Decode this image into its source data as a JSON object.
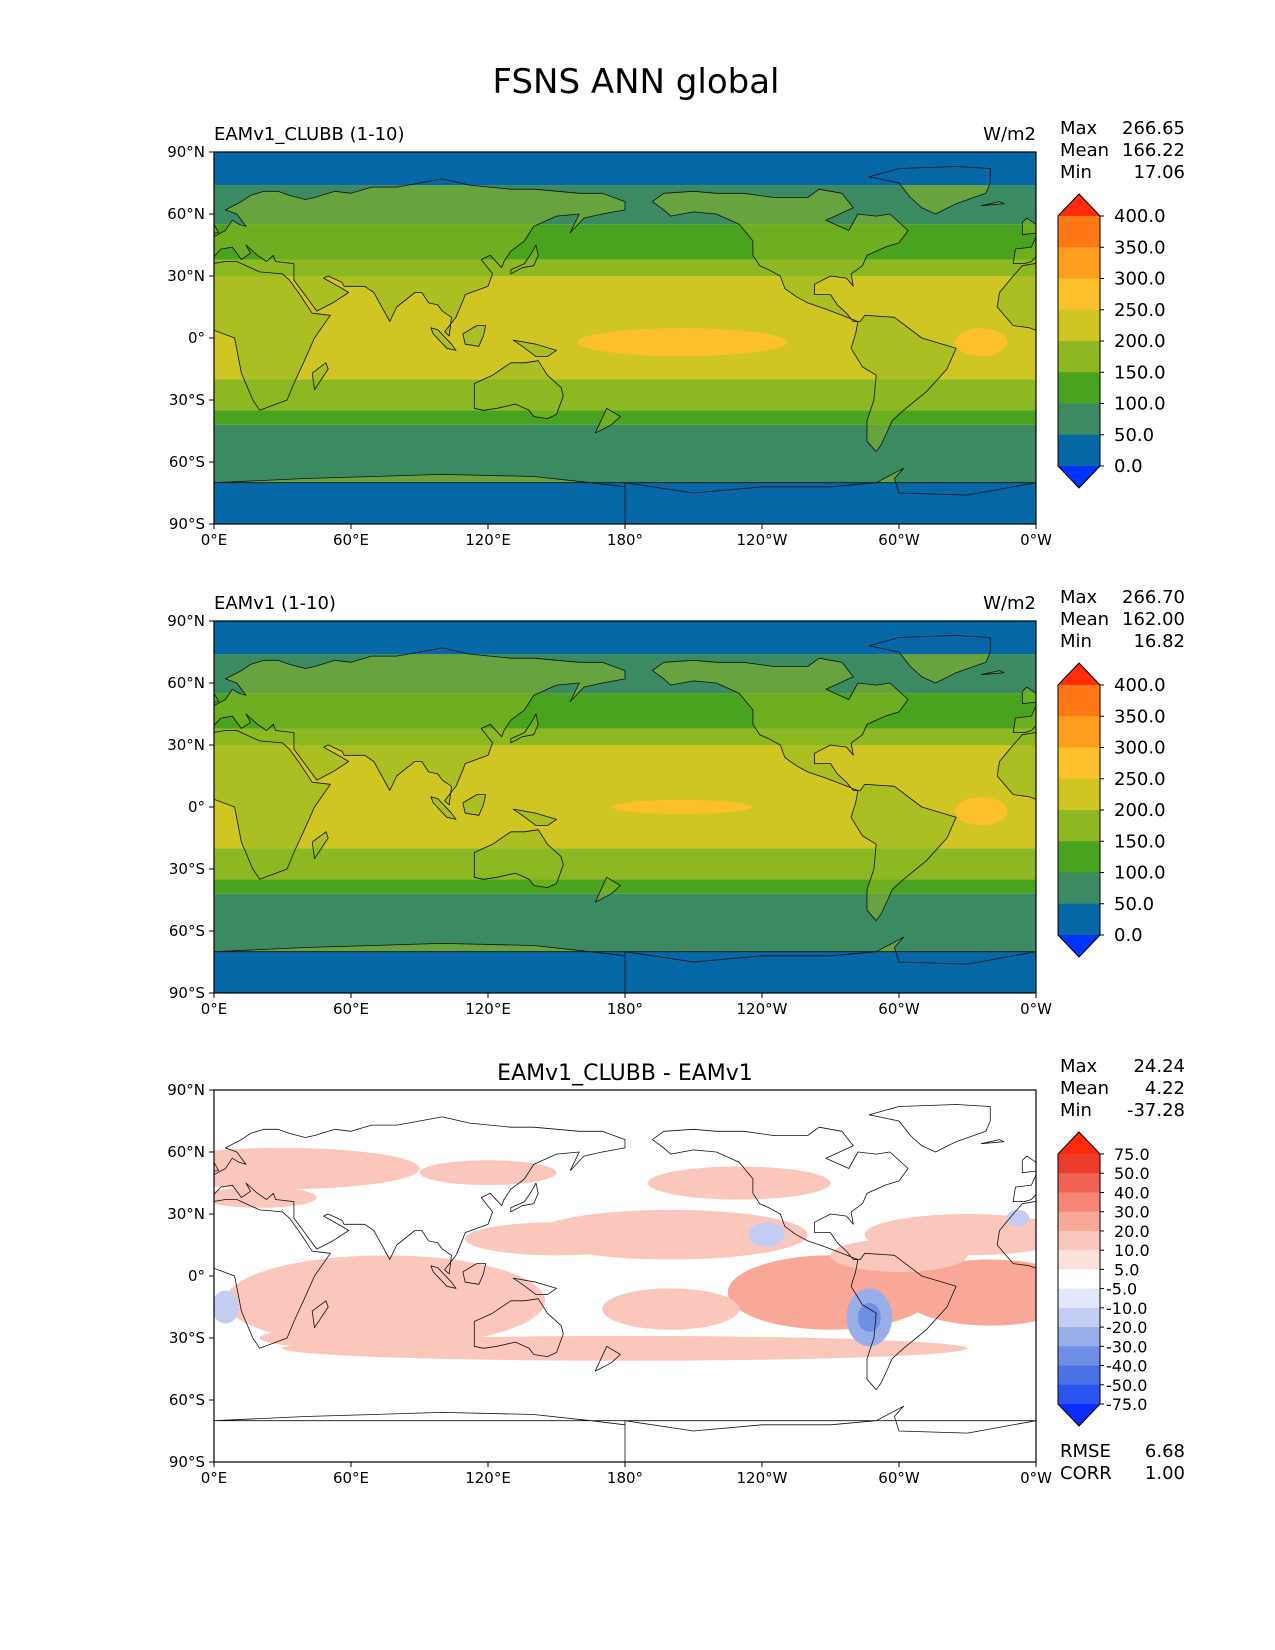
{
  "title": "FSNS ANN global",
  "chart_data": [
    {
      "type": "heatmap",
      "title": "EAMv1_CLUBB (1-10)",
      "units": "W/m2",
      "stats": [
        {
          "label": "Max",
          "value": "266.65"
        },
        {
          "label": "Mean",
          "value": "166.22"
        },
        {
          "label": "Min",
          "value": "17.06"
        }
      ],
      "xticks": [
        "0°E",
        "60°E",
        "120°E",
        "180°",
        "120°W",
        "60°W",
        "0°W"
      ],
      "yticks": [
        "90°N",
        "60°N",
        "30°N",
        "0°",
        "30°S",
        "60°S",
        "90°S"
      ],
      "xlim": [
        0,
        360
      ],
      "ylim": [
        -90,
        90
      ],
      "levels": [
        "0.0",
        "50.0",
        "100.0",
        "150.0",
        "200.0",
        "250.0",
        "300.0",
        "350.0",
        "400.0"
      ],
      "colors": [
        "#0033ff",
        "#0668a6",
        "#3b8a62",
        "#4aa31f",
        "#8db822",
        "#d0c623",
        "#fcc12a",
        "#fe9e1e",
        "#ff7815",
        "#ff2d0c"
      ]
    },
    {
      "type": "heatmap",
      "title": "EAMv1 (1-10)",
      "units": "W/m2",
      "stats": [
        {
          "label": "Max",
          "value": "266.70"
        },
        {
          "label": "Mean",
          "value": "162.00"
        },
        {
          "label": "Min",
          "value": "16.82"
        }
      ],
      "xticks": [
        "0°E",
        "60°E",
        "120°E",
        "180°",
        "120°W",
        "60°W",
        "0°W"
      ],
      "yticks": [
        "90°N",
        "60°N",
        "30°N",
        "0°",
        "30°S",
        "60°S",
        "90°S"
      ],
      "xlim": [
        0,
        360
      ],
      "ylim": [
        -90,
        90
      ],
      "levels": [
        "0.0",
        "50.0",
        "100.0",
        "150.0",
        "200.0",
        "250.0",
        "300.0",
        "350.0",
        "400.0"
      ],
      "colors": [
        "#0033ff",
        "#0668a6",
        "#3b8a62",
        "#4aa31f",
        "#8db822",
        "#d0c623",
        "#fcc12a",
        "#fe9e1e",
        "#ff7815",
        "#ff2d0c"
      ]
    },
    {
      "type": "heatmap",
      "title": "EAMv1_CLUBB - EAMv1",
      "units": "",
      "stats": [
        {
          "label": "Max",
          "value": "24.24"
        },
        {
          "label": "Mean",
          "value": "4.22"
        },
        {
          "label": "Min",
          "value": "-37.28"
        }
      ],
      "extra_stats": [
        {
          "label": "RMSE",
          "value": "6.68"
        },
        {
          "label": "CORR",
          "value": "1.00"
        }
      ],
      "xticks": [
        "0°E",
        "60°E",
        "120°E",
        "180°",
        "120°W",
        "60°W",
        "0°W"
      ],
      "yticks": [
        "90°N",
        "60°N",
        "30°N",
        "0°",
        "30°S",
        "60°S",
        "90°S"
      ],
      "xlim": [
        0,
        360
      ],
      "ylim": [
        -90,
        90
      ],
      "levels": [
        "-75.0",
        "-50.0",
        "-40.0",
        "-30.0",
        "-20.0",
        "-10.0",
        "-5.0",
        "5.0",
        "10.0",
        "20.0",
        "30.0",
        "40.0",
        "50.0",
        "75.0"
      ],
      "colors": [
        "#0a2bff",
        "#2a55f0",
        "#4a72e6",
        "#6f8fe6",
        "#98aee9",
        "#c2cdf1",
        "#e2e7f9",
        "#ffffff",
        "#fde2dc",
        "#fbc6bb",
        "#f9a898",
        "#f68676",
        "#f26252",
        "#ec3d2c",
        "#ff2a0a"
      ]
    }
  ]
}
